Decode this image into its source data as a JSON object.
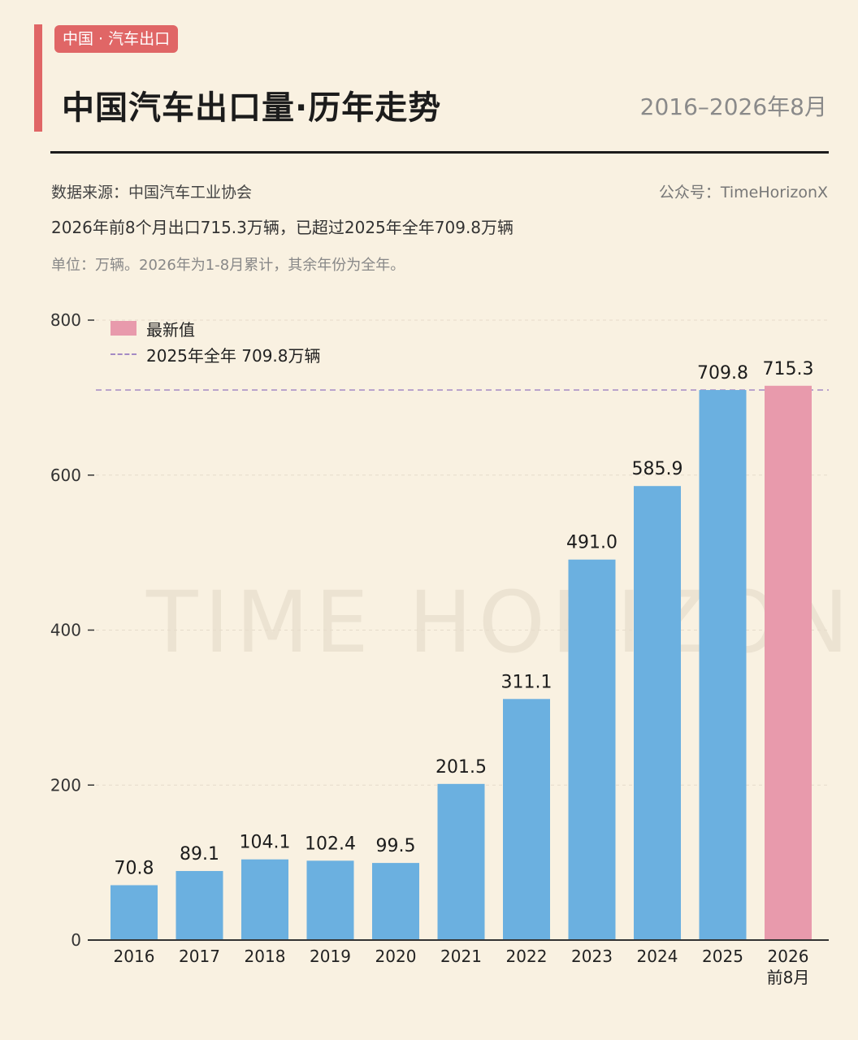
{
  "header": {
    "tag": "中国 · 汽车出口",
    "title": "中国汽车出口量·历年走势",
    "date_range": "2016–2026年8月"
  },
  "info": {
    "source": "数据来源：中国汽车工业协会",
    "account": "公众号：TimeHorizonX",
    "highlight": "2026年前8个月出口715.3万辆，已超过2025年全年709.8万辆",
    "unit_note": "单位：万辆。2026年为1-8月累计，其余年份为全年。"
  },
  "watermark": "TIME HORIZON",
  "legend": {
    "latest_label": "最新值",
    "reference_label": "2025年全年 709.8万辆"
  },
  "colors": {
    "bar": "#6bb0e0",
    "latest_bar": "#e89aac",
    "reference_line": "#a58bc5",
    "accent": "#e06666",
    "background": "#f9f1e1"
  },
  "chart_data": {
    "type": "bar",
    "title": "中国汽车出口量·历年走势",
    "categories": [
      "2016",
      "2017",
      "2018",
      "2019",
      "2020",
      "2021",
      "2022",
      "2023",
      "2024",
      "2025",
      "2026\n前8月"
    ],
    "values": [
      70.8,
      89.1,
      104.1,
      102.4,
      99.5,
      201.5,
      311.1,
      491.0,
      585.9,
      709.8,
      715.3
    ],
    "value_labels": [
      "70.8",
      "89.1",
      "104.1",
      "102.4",
      "99.5",
      "201.5",
      "311.1",
      "491.0",
      "585.9",
      "709.8",
      "715.3"
    ],
    "highlight_index": 10,
    "reference_line": {
      "value": 709.8,
      "label": "2025年全年 709.8万辆"
    },
    "ylim": [
      0,
      800
    ],
    "yticks": [
      0,
      200,
      400,
      600,
      800
    ],
    "ylabel": "",
    "xlabel": "",
    "grid": true,
    "legend_position": "top-left"
  }
}
